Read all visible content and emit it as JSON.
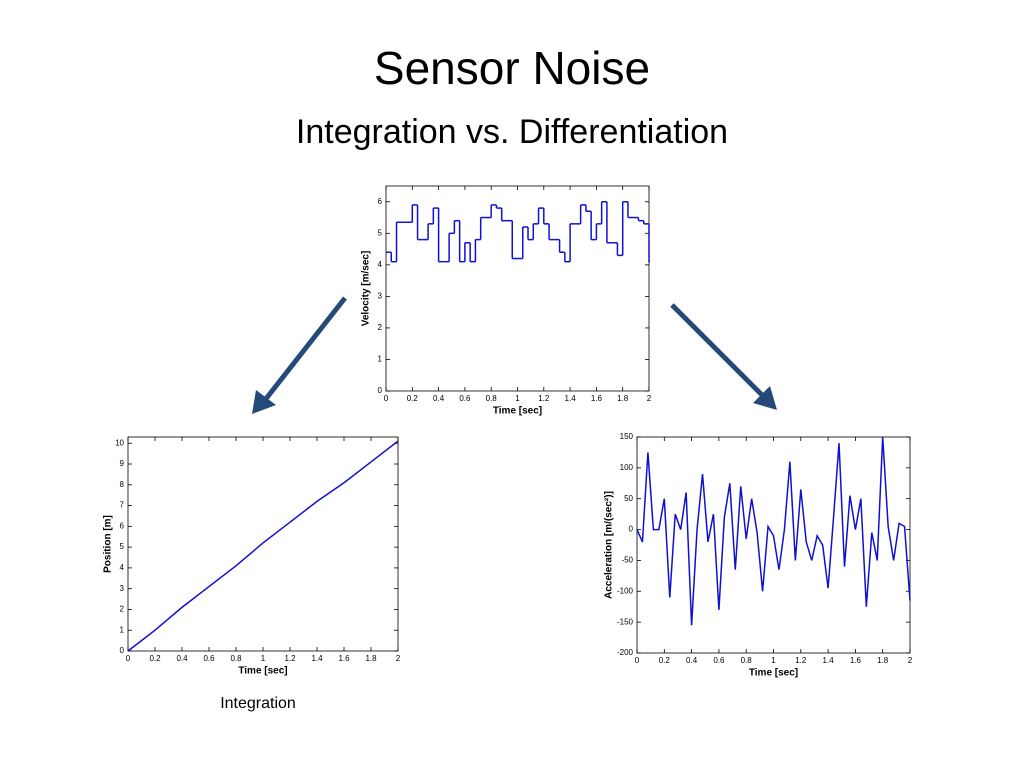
{
  "slide": {
    "title": "Sensor Noise",
    "subtitle": "Integration vs. Differentiation",
    "caption": "Integration"
  },
  "chart_data": [
    {
      "type": "line",
      "drawstyle": "steps",
      "xlabel": "Time [sec]",
      "ylabel": "Velocity [m/sec]",
      "color": "#1010d0",
      "xlim": [
        0,
        2
      ],
      "xticks": [
        0,
        0.2,
        0.4,
        0.6,
        0.8,
        1,
        1.2,
        1.4,
        1.6,
        1.8,
        2
      ],
      "ylim": [
        0,
        6.5
      ],
      "yticks": [
        0,
        1,
        2,
        3,
        4,
        5,
        6
      ],
      "x": [
        0,
        0.04,
        0.08,
        0.12,
        0.16,
        0.2,
        0.24,
        0.28,
        0.32,
        0.36,
        0.4,
        0.44,
        0.48,
        0.52,
        0.56,
        0.6,
        0.64,
        0.68,
        0.72,
        0.76,
        0.8,
        0.84,
        0.88,
        0.92,
        0.96,
        1,
        1.04,
        1.08,
        1.12,
        1.16,
        1.2,
        1.24,
        1.28,
        1.32,
        1.36,
        1.4,
        1.44,
        1.48,
        1.52,
        1.56,
        1.6,
        1.64,
        1.68,
        1.72,
        1.76,
        1.8,
        1.84,
        1.88,
        1.92,
        1.96,
        2
      ],
      "values": [
        4.4,
        4.1,
        5.35,
        5.35,
        5.35,
        5.9,
        4.8,
        4.8,
        5.3,
        5.8,
        4.1,
        4.1,
        5.0,
        5.4,
        4.1,
        4.7,
        4.1,
        4.8,
        5.5,
        5.5,
        5.9,
        5.8,
        5.4,
        5.4,
        4.2,
        4.2,
        5.2,
        4.8,
        5.3,
        5.8,
        5.3,
        4.8,
        4.8,
        4.4,
        4.1,
        5.3,
        5.3,
        5.9,
        5.7,
        4.8,
        5.3,
        6.0,
        4.7,
        4.7,
        4.3,
        6.0,
        5.5,
        5.5,
        5.4,
        5.3,
        4.1
      ]
    },
    {
      "type": "line",
      "xlabel": "Time [sec]",
      "ylabel": "Position [m]",
      "color": "#1010d0",
      "xlim": [
        0,
        2
      ],
      "xticks": [
        0,
        0.2,
        0.4,
        0.6,
        0.8,
        1,
        1.2,
        1.4,
        1.6,
        1.8,
        2
      ],
      "ylim": [
        0,
        10.3
      ],
      "yticks": [
        0,
        1,
        2,
        3,
        4,
        5,
        6,
        7,
        8,
        9,
        10
      ],
      "x": [
        0,
        0.2,
        0.4,
        0.6,
        0.8,
        1,
        1.2,
        1.4,
        1.6,
        1.8,
        2
      ],
      "values": [
        0,
        1.0,
        2.1,
        3.1,
        4.1,
        5.2,
        6.2,
        7.2,
        8.1,
        9.1,
        10.1
      ]
    },
    {
      "type": "line",
      "xlabel": "Time [sec]",
      "ylabel": "Acceleration [m/(sec²)]",
      "color": "#1010d0",
      "xlim": [
        0,
        2
      ],
      "xticks": [
        0,
        0.2,
        0.4,
        0.6,
        0.8,
        1,
        1.2,
        1.4,
        1.6,
        1.8,
        2
      ],
      "ylim": [
        -200,
        150
      ],
      "yticks": [
        -200,
        -150,
        -100,
        -50,
        0,
        50,
        100,
        150
      ],
      "x": [
        0,
        0.04,
        0.08,
        0.12,
        0.16,
        0.2,
        0.24,
        0.28,
        0.32,
        0.36,
        0.4,
        0.44,
        0.48,
        0.52,
        0.56,
        0.6,
        0.64,
        0.68,
        0.72,
        0.76,
        0.8,
        0.84,
        0.88,
        0.92,
        0.96,
        1,
        1.04,
        1.08,
        1.12,
        1.16,
        1.2,
        1.24,
        1.28,
        1.32,
        1.36,
        1.4,
        1.44,
        1.48,
        1.52,
        1.56,
        1.6,
        1.64,
        1.68,
        1.72,
        1.76,
        1.8,
        1.84,
        1.88,
        1.92,
        1.96,
        2
      ],
      "values": [
        0,
        -20,
        125,
        0,
        0,
        50,
        -110,
        25,
        0,
        60,
        -155,
        0,
        90,
        -20,
        25,
        -130,
        20,
        75,
        -65,
        70,
        -15,
        50,
        -5,
        -100,
        5,
        -10,
        -65,
        0,
        110,
        -50,
        65,
        -20,
        -50,
        -10,
        -25,
        -95,
        20,
        140,
        -60,
        55,
        0,
        50,
        -125,
        -5,
        -50,
        150,
        5,
        -50,
        10,
        5,
        -115
      ]
    }
  ]
}
